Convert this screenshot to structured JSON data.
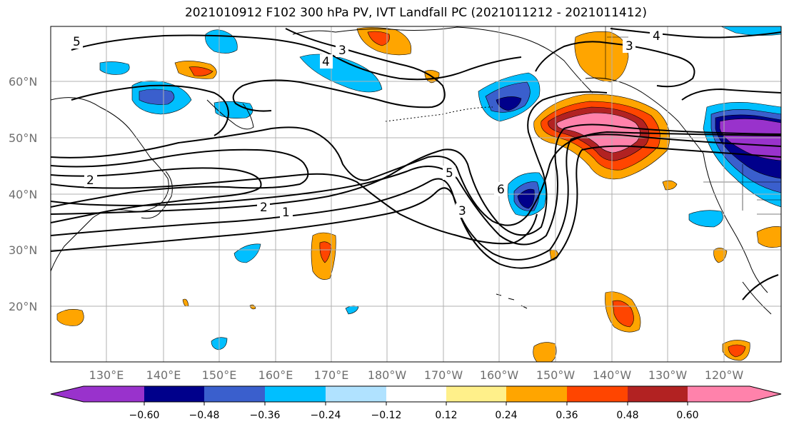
{
  "title": "2021010912 F102 300 hPa PV, IVT Landfall PC (2021011212 - 2021011412)",
  "lat_labels": [
    "60°N",
    "50°N",
    "40°N",
    "30°N",
    "20°N"
  ],
  "lon_labels": [
    "130°E",
    "140°E",
    "150°E",
    "160°E",
    "170°E",
    "180°W",
    "170°W",
    "160°W",
    "150°W",
    "140°W",
    "130°W",
    "120°W"
  ],
  "contour_labels": [
    "5",
    "3",
    "4",
    "4",
    "3",
    "2",
    "2",
    "1",
    "5",
    "3",
    "6"
  ],
  "colorbar": {
    "tick_labels": [
      "−0.60",
      "−0.48",
      "−0.36",
      "−0.24",
      "−0.12",
      "0.12",
      "0.24",
      "0.36",
      "0.48",
      "0.60"
    ],
    "colors": [
      "#9932cc",
      "#00008b",
      "#3a5fcd",
      "#00bfff",
      "#b0e2ff",
      "#ffffff",
      "#fff08a",
      "#ffa500",
      "#ff4500",
      "#b22222",
      "#ff82ab"
    ]
  }
}
